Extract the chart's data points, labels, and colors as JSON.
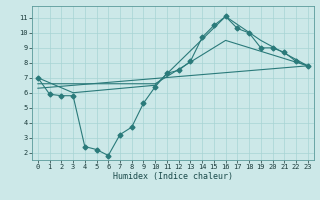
{
  "xlabel": "Humidex (Indice chaleur)",
  "background_color": "#cce8e8",
  "line_color": "#2a7a7a",
  "grid_color": "#a8d4d4",
  "xlim": [
    -0.5,
    23.5
  ],
  "ylim": [
    1.5,
    11.8
  ],
  "yticks": [
    2,
    3,
    4,
    5,
    6,
    7,
    8,
    9,
    10,
    11
  ],
  "xticks": [
    0,
    1,
    2,
    3,
    4,
    5,
    6,
    7,
    8,
    9,
    10,
    11,
    12,
    13,
    14,
    15,
    16,
    17,
    18,
    19,
    20,
    21,
    22,
    23
  ],
  "line1_x": [
    0,
    1,
    2,
    3,
    4,
    5,
    6,
    7,
    8,
    9,
    10,
    11,
    12,
    13,
    14,
    15,
    16,
    17,
    18,
    19,
    20,
    21,
    22,
    23
  ],
  "line1_y": [
    7.0,
    5.9,
    5.8,
    5.8,
    2.4,
    2.2,
    1.8,
    3.2,
    3.7,
    5.3,
    6.4,
    7.3,
    7.5,
    8.1,
    9.7,
    10.5,
    11.1,
    10.3,
    10.0,
    9.0,
    9.0,
    8.7,
    8.1,
    7.8
  ],
  "line2_x": [
    0,
    3,
    10,
    16,
    19,
    23
  ],
  "line2_y": [
    7.0,
    6.0,
    6.5,
    11.1,
    9.5,
    7.8
  ],
  "line3_x": [
    0,
    23
  ],
  "line3_y": [
    6.3,
    7.8
  ],
  "line4_x": [
    0,
    10,
    16,
    23
  ],
  "line4_y": [
    6.6,
    6.6,
    9.5,
    7.8
  ]
}
